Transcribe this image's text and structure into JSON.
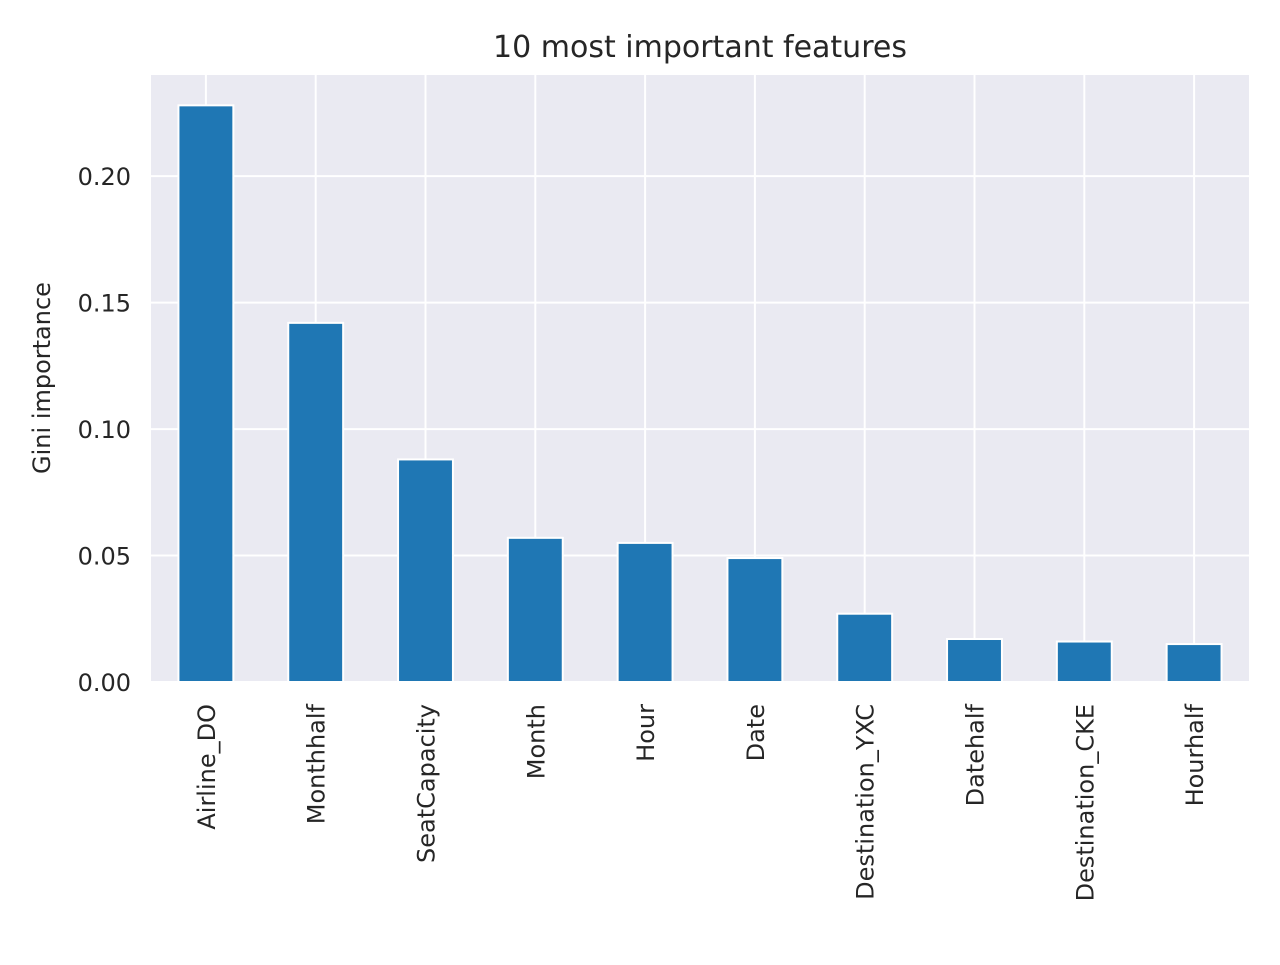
{
  "chart_data": {
    "type": "bar",
    "title": "10 most important features",
    "xlabel": "",
    "ylabel": "Gini importance",
    "categories": [
      "Airline_DO",
      "Monthhalf",
      "SeatCapacity",
      "Month",
      "Hour",
      "Date",
      "Destination_YXC",
      "Datehalf",
      "Destination_CKE",
      "Hourhalf"
    ],
    "values": [
      0.228,
      0.142,
      0.088,
      0.057,
      0.055,
      0.049,
      0.027,
      0.017,
      0.016,
      0.015
    ],
    "ylim": [
      0,
      0.24
    ],
    "yticks": [
      0.0,
      0.05,
      0.1,
      0.15,
      0.2
    ],
    "ytick_labels": [
      "0.00",
      "0.05",
      "0.10",
      "0.15",
      "0.20"
    ],
    "grid": true,
    "bar_color": "#1f77b4",
    "background_color": "#eaeaf2",
    "grid_color": "#ffffff"
  }
}
